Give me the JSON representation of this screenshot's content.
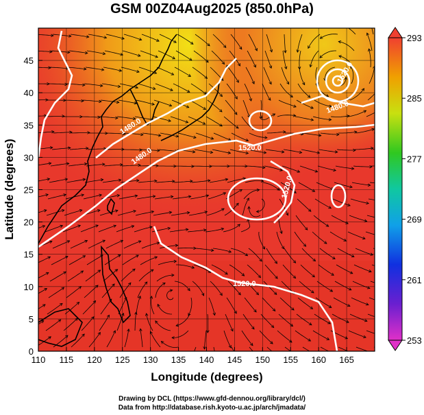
{
  "title": "GSM 00Z04Aug2025 (850.0hPa)",
  "xaxis": {
    "label": "Longitude (degrees)",
    "min": 110,
    "max": 170,
    "ticks": [
      "110",
      "115",
      "120",
      "125",
      "130",
      "135",
      "140",
      "145",
      "150",
      "155",
      "160",
      "165"
    ]
  },
  "yaxis": {
    "label": "Latitude  (degrees)",
    "min": 0,
    "max": 50,
    "ticks": [
      "0",
      "5",
      "10",
      "15",
      "20",
      "25",
      "30",
      "35",
      "40",
      "45"
    ]
  },
  "colorbar": {
    "ticks": [
      "293",
      "285",
      "277",
      "269",
      "261",
      "253"
    ]
  },
  "contour_labels": [
    "1480.0",
    "1480.0",
    "1520.0",
    "1520.0",
    "1520.0",
    "1520.0",
    "1480.0"
  ],
  "credits": [
    "Drawing by DCL (https://www.gfd-dennou.org/library/dcl/)",
    "Data from http://database.rish.kyoto-u.ac.jp/arch/jmadata/"
  ],
  "colors": {
    "background": "#e8382c",
    "contour": "#ffffff",
    "coast": "#000000"
  }
}
